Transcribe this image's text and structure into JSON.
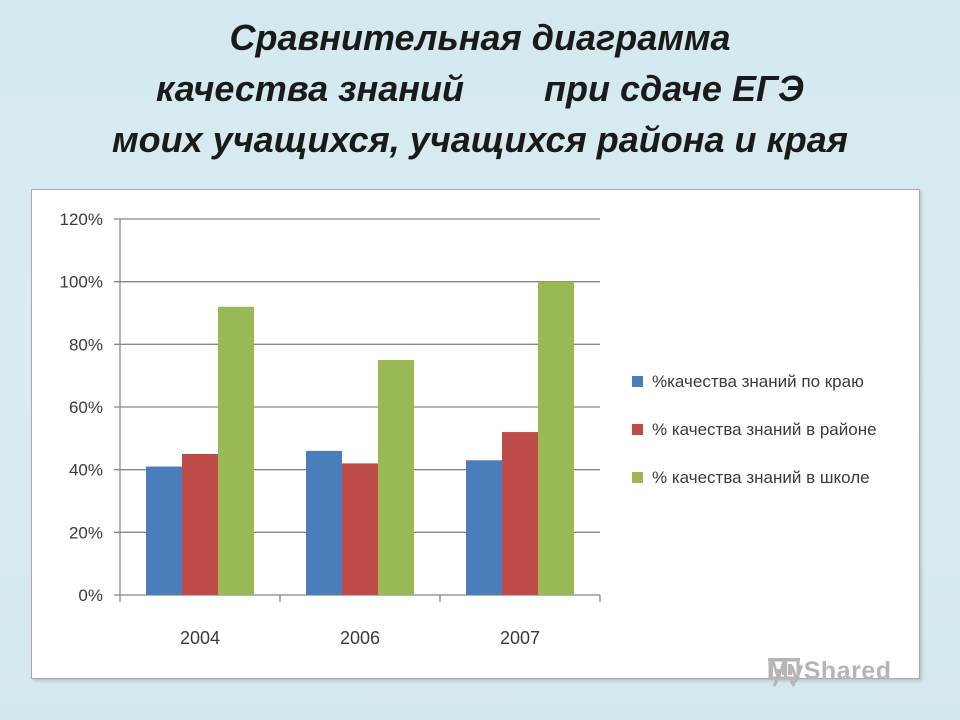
{
  "title": {
    "line1": "Сравнительная диаграмма",
    "line2": "качества знаний        при сдаче ЕГЭ",
    "line3": "моих учащихся, учащихся района и края"
  },
  "watermark": {
    "text": "MyShared",
    "icon": "presentation-board-icon"
  },
  "chart_data": {
    "type": "bar",
    "categories": [
      "2004",
      "2006",
      "2007"
    ],
    "series": [
      {
        "name": "%качества знаний по краю",
        "values": [
          41,
          46,
          43
        ],
        "color": "#4a7ebb"
      },
      {
        "name": "% качества знаний в районе",
        "values": [
          45,
          42,
          52
        ],
        "color": "#be4b48"
      },
      {
        "name": "% качества знаний в школе",
        "values": [
          92,
          75,
          100
        ],
        "color": "#98b954"
      }
    ],
    "ylim": [
      0,
      120
    ],
    "yticks": [
      0,
      20,
      40,
      60,
      80,
      100,
      120
    ],
    "ytick_labels": [
      "0%",
      "20%",
      "40%",
      "60%",
      "80%",
      "100%",
      "120%"
    ],
    "grid": true,
    "legend_position": "right"
  }
}
